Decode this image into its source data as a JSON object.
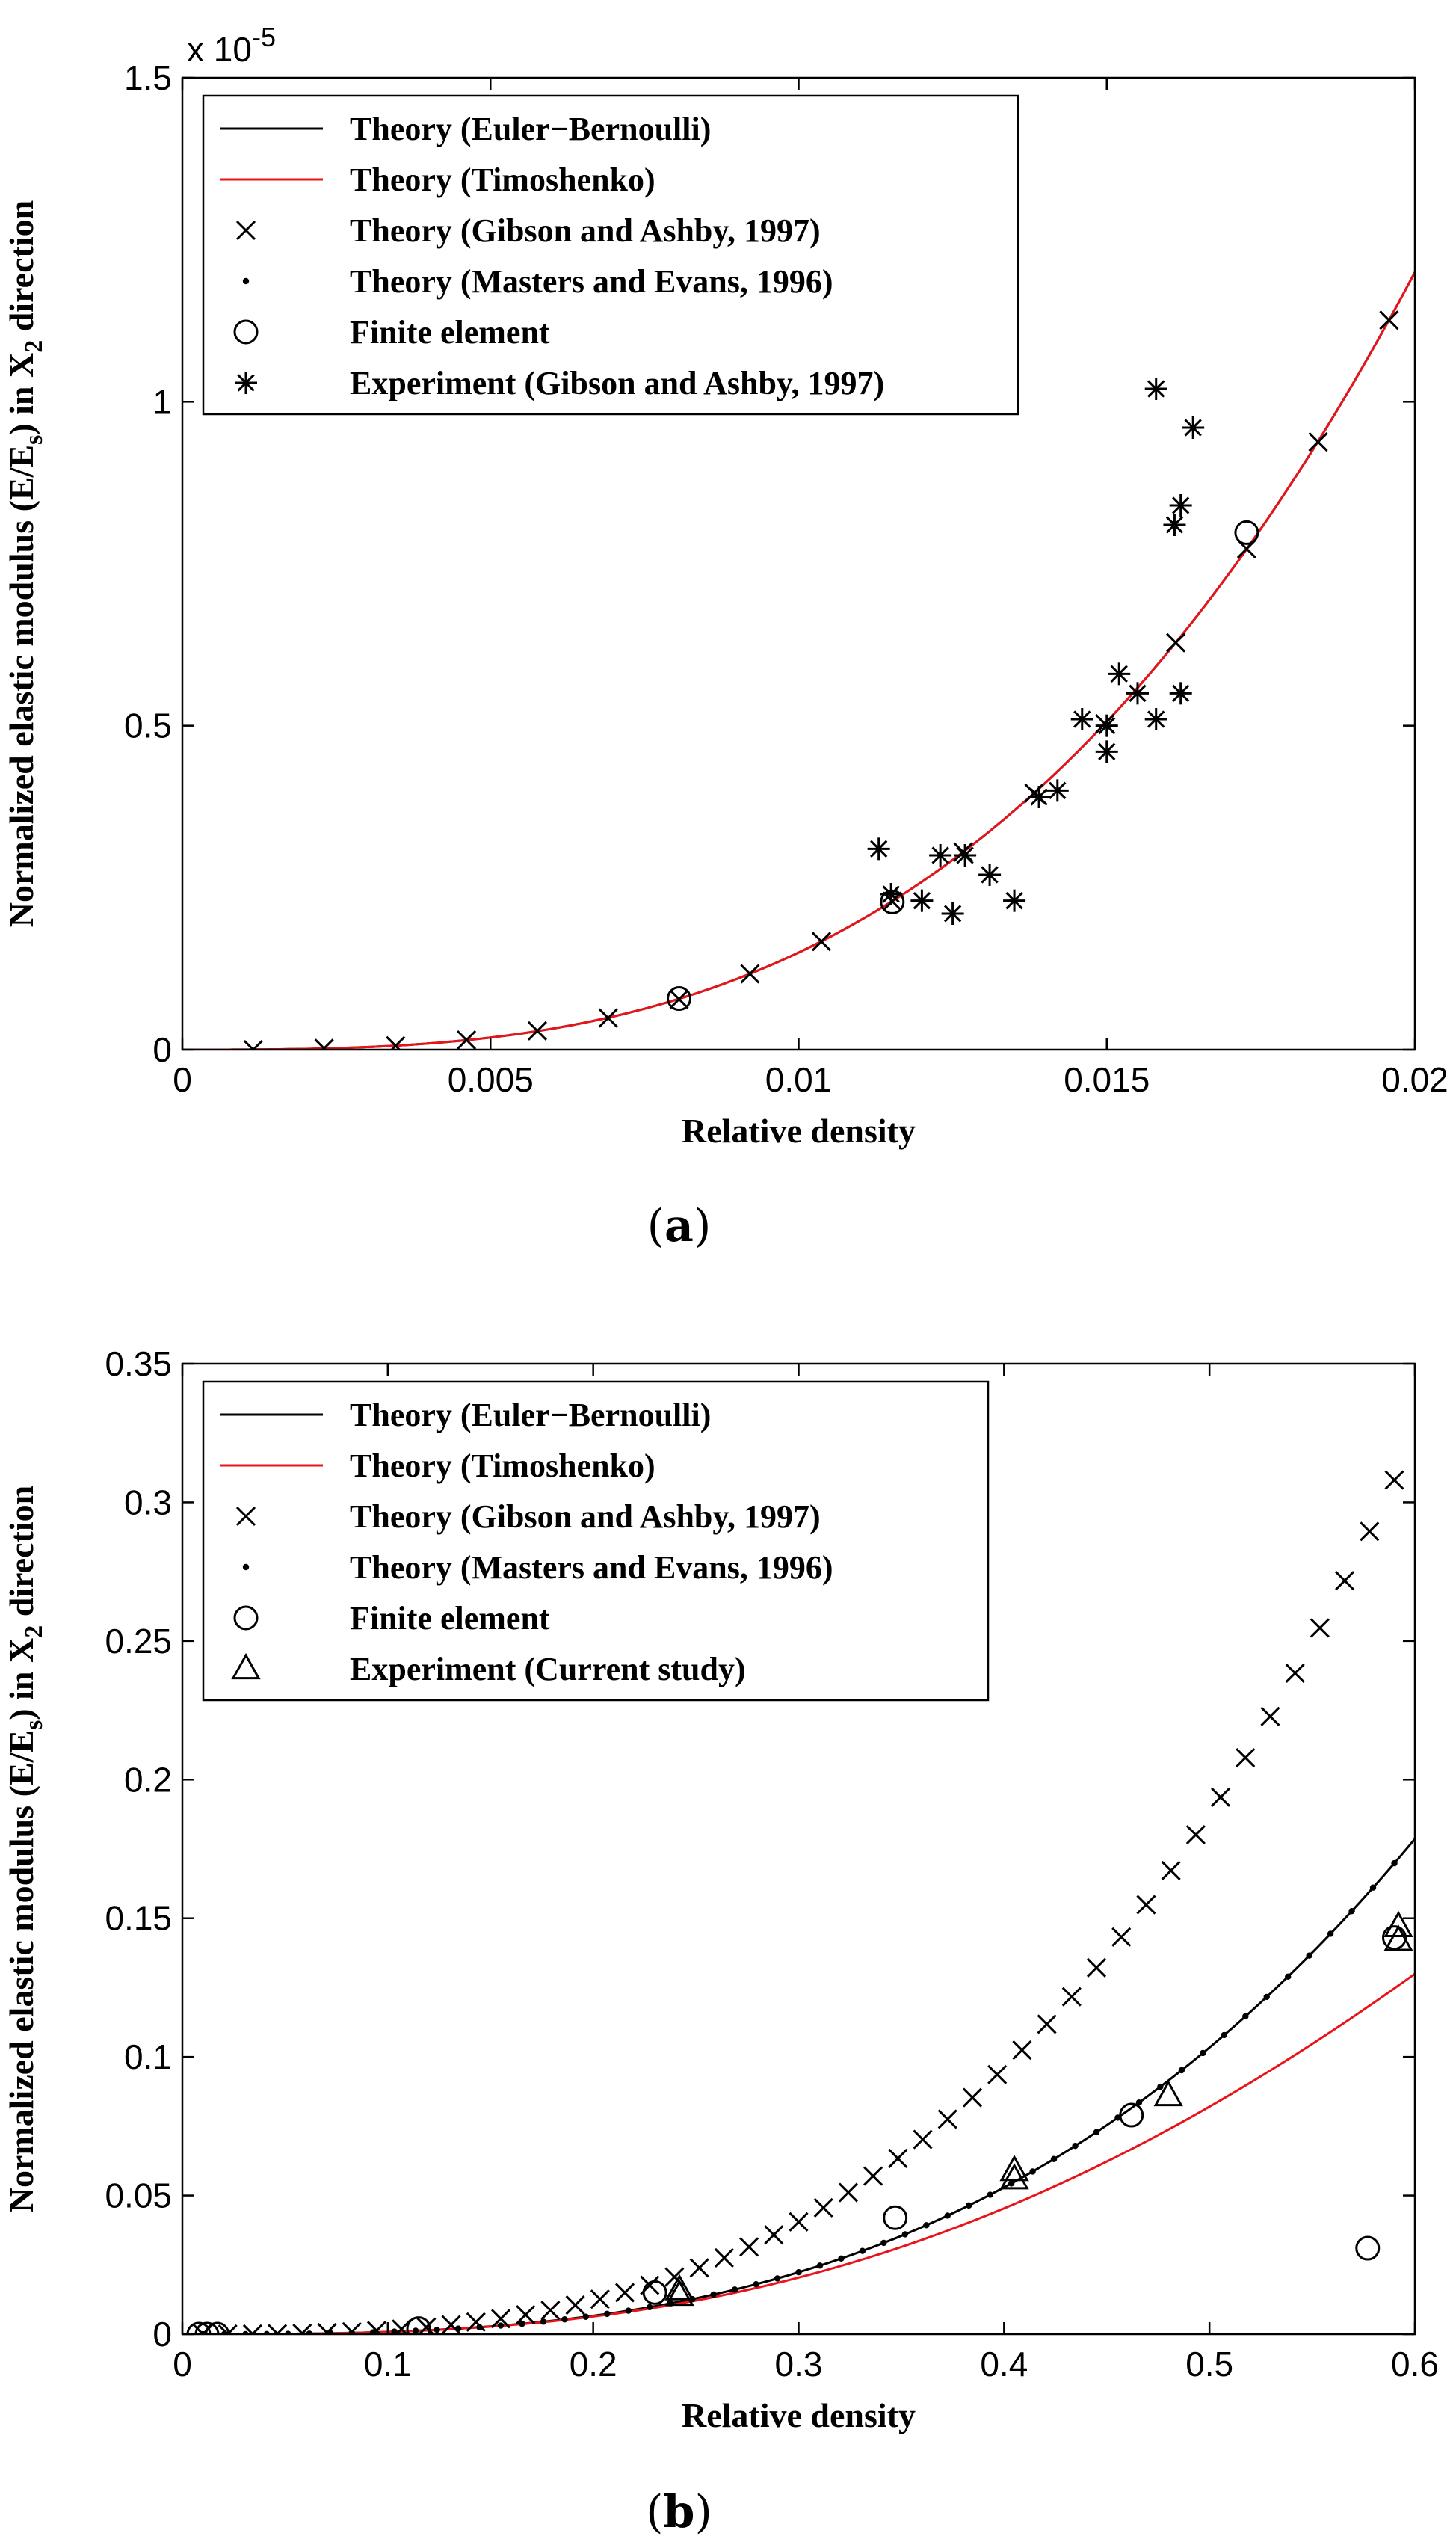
{
  "chart_data": [
    {
      "type": "line",
      "caption": "(a)",
      "caption_letter": "a",
      "xlabel": "Relative density",
      "ylabel": "Normalized elastic modulus (E/Es) in X2 direction",
      "ylabel_parts": [
        "Normalized elastic modulus (E/E",
        "s",
        ") in X",
        "2",
        " direction"
      ],
      "multiplier": "x 10",
      "multiplier_exp": "-5",
      "xlim": [
        0,
        0.02
      ],
      "ylim": [
        0,
        1.5
      ],
      "xticks": [
        0,
        0.005,
        0.01,
        0.015,
        0.02
      ],
      "xtick_labels": [
        "0",
        "0.005",
        "0.01",
        "0.015",
        "0.02"
      ],
      "yticks": [
        0,
        0.5,
        1,
        1.5
      ],
      "ytick_labels": [
        "0",
        "0.5",
        "1",
        "1.5"
      ],
      "legend_position": "top-left",
      "legend": [
        {
          "label": "Theory (Euler−Bernoulli)",
          "marker": "line",
          "color": "#000000"
        },
        {
          "label": "Theory (Timoshenko)",
          "marker": "line",
          "color": "#e8141a"
        },
        {
          "label": "Theory (Gibson and Ashby, 1997)",
          "marker": "x",
          "color": "#000000"
        },
        {
          "label": "Theory (Masters and Evans, 1996)",
          "marker": "dot",
          "color": "#000000"
        },
        {
          "label": "Finite element",
          "marker": "circle",
          "color": "#000000"
        },
        {
          "label": "Experiment (Gibson and Ashby, 1997)",
          "marker": "asterisk",
          "color": "#000000"
        }
      ],
      "series": [
        {
          "name": "Theory (Euler−Bernoulli)",
          "style": "line",
          "color": "#000000",
          "coef": 1.5
        },
        {
          "name": "Theory (Timoshenko)",
          "style": "line",
          "color": "#e8141a",
          "coef": 1.5
        },
        {
          "name": "Theory (Gibson and Ashby, 1997)",
          "style": "x",
          "x": [
            0.00115,
            0.0023,
            0.00346,
            0.00461,
            0.00576,
            0.00691,
            0.00806,
            0.00921,
            0.01037,
            0.01152,
            0.01267,
            0.01382,
            0.01497,
            0.01612,
            0.01727,
            0.01843,
            0.01958
          ],
          "y": [
            0.0,
            0.002,
            0.006,
            0.015,
            0.029,
            0.049,
            0.078,
            0.117,
            0.167,
            0.229,
            0.305,
            0.396,
            0.503,
            0.628,
            0.773,
            0.938,
            1.126
          ]
        },
        {
          "name": "Finite element",
          "style": "circle",
          "x": [
            0.00806,
            0.01152,
            0.01727
          ],
          "y": [
            0.079,
            0.228,
            0.798
          ]
        },
        {
          "name": "Experiment (Gibson and Ashby, 1997)",
          "style": "asterisk",
          "x": [
            0.0113,
            0.0115,
            0.012,
            0.0123,
            0.0125,
            0.0127,
            0.0131,
            0.0135,
            0.0139,
            0.0142,
            0.0146,
            0.015,
            0.015,
            0.0152,
            0.0155,
            0.0158,
            0.0158,
            0.0161,
            0.0162,
            0.0162,
            0.0164
          ],
          "y": [
            0.31,
            0.24,
            0.23,
            0.3,
            0.21,
            0.3,
            0.27,
            0.23,
            0.39,
            0.4,
            0.51,
            0.5,
            0.46,
            0.58,
            0.55,
            0.51,
            1.02,
            0.81,
            0.84,
            0.55,
            0.96
          ]
        }
      ]
    },
    {
      "type": "line",
      "caption": "(b)",
      "caption_letter": "b",
      "xlabel": "Relative density",
      "ylabel": "Normalized elastic modulus (E/Es) in X2 direction",
      "ylabel_parts": [
        "Normalized elastic modulus (E/E",
        "s",
        ") in X",
        "2",
        " direction"
      ],
      "xlim": [
        0,
        0.6
      ],
      "ylim": [
        0,
        0.35
      ],
      "xticks": [
        0,
        0.1,
        0.2,
        0.3,
        0.4,
        0.5,
        0.6
      ],
      "xtick_labels": [
        "0",
        "0.1",
        "0.2",
        "0.3",
        "0.4",
        "0.5",
        "0.6"
      ],
      "yticks": [
        0,
        0.05,
        0.1,
        0.15,
        0.2,
        0.25,
        0.3,
        0.35
      ],
      "ytick_labels": [
        "0",
        "0.05",
        "0.1",
        "0.15",
        "0.2",
        "0.25",
        "0.3",
        "0.35"
      ],
      "legend_position": "top-left",
      "legend": [
        {
          "label": "Theory (Euler−Bernoulli)",
          "marker": "line",
          "color": "#000000"
        },
        {
          "label": "Theory (Timoshenko)",
          "marker": "line",
          "color": "#e8141a"
        },
        {
          "label": "Theory (Gibson and Ashby, 1997)",
          "marker": "x",
          "color": "#000000"
        },
        {
          "label": "Theory (Masters and Evans, 1996)",
          "marker": "dot",
          "color": "#000000"
        },
        {
          "label": "Finite element",
          "marker": "circle",
          "color": "#000000"
        },
        {
          "label": "Experiment (Current study)",
          "marker": "triangle",
          "color": "#000000"
        }
      ],
      "series": [
        {
          "name": "Theory (Euler−Bernoulli)",
          "style": "line",
          "color": "#000000",
          "coef": 0.827,
          "xmin": 0.0,
          "xmax": 0.6
        },
        {
          "name": "Theory (Timoshenko)",
          "style": "line",
          "color": "#e8141a",
          "coef": 0.827,
          "corr": 1.04,
          "xmin": 0.0,
          "xmax": 0.6
        },
        {
          "name": "Theory (Gibson and Ashby, 1997)",
          "style": "x",
          "coef": 1.5,
          "xmin": 0.01,
          "xmax": 0.59,
          "n": 49
        },
        {
          "name": "Theory (Masters and Evans, 1996)",
          "style": "dot",
          "coef": 0.827,
          "xmin": 0.01,
          "xmax": 0.59,
          "n": 57
        },
        {
          "name": "Finite element",
          "style": "circle",
          "x": [
            0.008,
            0.012,
            0.017,
            0.115,
            0.23,
            0.347,
            0.462,
            0.577,
            0.59
          ],
          "y": [
            0.0,
            0.0,
            0.0,
            0.002,
            0.015,
            0.042,
            0.079,
            0.031,
            0.143
          ]
        },
        {
          "name": "Experiment (Current study)",
          "style": "triangle",
          "x": [
            0.242,
            0.242,
            0.405,
            0.405,
            0.48,
            0.592,
            0.592
          ],
          "y": [
            0.014,
            0.016,
            0.056,
            0.059,
            0.086,
            0.142,
            0.147
          ]
        }
      ]
    }
  ]
}
